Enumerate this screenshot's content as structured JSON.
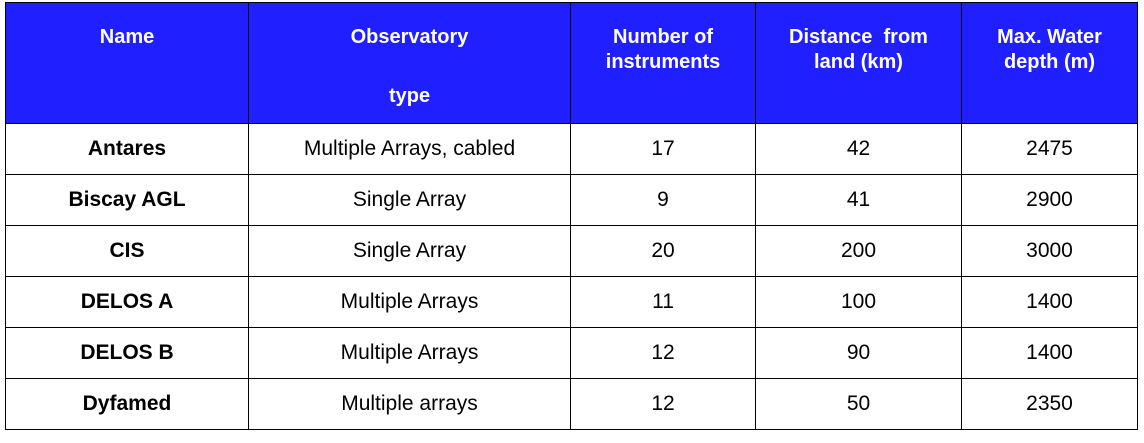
{
  "headers": {
    "name": "Name",
    "observatory_line1": "Observatory",
    "observatory_line2": "type",
    "instruments_line1": "Number of",
    "instruments_line2": "instruments",
    "distance_line1": "Distance  from",
    "distance_line2": "land (km)",
    "depth_line1": "Max. Water",
    "depth_line2": "depth (m)"
  },
  "rows": [
    {
      "name": "Antares",
      "type": "Multiple Arrays, cabled",
      "instruments": "17",
      "distance": "42",
      "depth": "2475"
    },
    {
      "name": "Biscay AGL",
      "type": "Single Array",
      "instruments": "9",
      "distance": "41",
      "depth": "2900"
    },
    {
      "name": "CIS",
      "type": "Single Array",
      "instruments": "20",
      "distance": "200",
      "depth": "3000"
    },
    {
      "name": "DELOS A",
      "type": "Multiple Arrays",
      "instruments": "11",
      "distance": "100",
      "depth": "1400"
    },
    {
      "name": "DELOS B",
      "type": "Multiple Arrays",
      "instruments": "12",
      "distance": "90",
      "depth": "1400"
    },
    {
      "name": "Dyfamed",
      "type": "Multiple arrays",
      "instruments": "12",
      "distance": "50",
      "depth": "2350"
    }
  ],
  "colors": {
    "header_bg": "#1f1fff",
    "header_text": "#ffffff",
    "border": "#000000"
  }
}
